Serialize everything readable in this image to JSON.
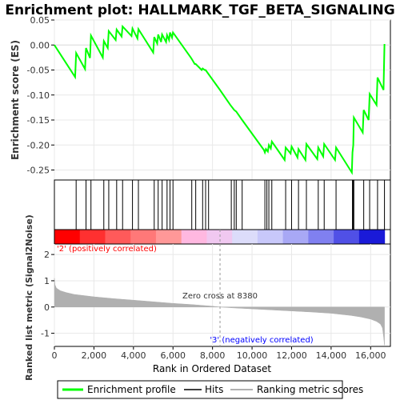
{
  "chart_data": {
    "type": "line",
    "title": "Enrichment plot: HALLMARK_TGF_BETA_SIGNALING",
    "top_panel": {
      "ylabel": "Enrichment score (ES)",
      "ylim": [
        -0.27,
        0.05
      ],
      "yticks": [
        0.05,
        0.0,
        -0.05,
        -0.1,
        -0.15,
        -0.2,
        -0.25
      ],
      "ytick_labels": [
        "0.05",
        "0.00",
        "-0.05",
        "-0.10",
        "-0.15",
        "-0.20",
        "-0.25"
      ],
      "line_color": "#00ff00",
      "series": [
        {
          "name": "Enrichment profile",
          "x": [
            0,
            1050,
            1100,
            1550,
            1600,
            1800,
            1850,
            2450,
            2500,
            2700,
            2750,
            3100,
            3150,
            3400,
            3450,
            3900,
            3950,
            4200,
            4250,
            5000,
            5050,
            5200,
            5250,
            5400,
            5450,
            5650,
            5700,
            5800,
            5850,
            5950,
            6000,
            6900,
            6950,
            7100,
            7150,
            7450,
            7500,
            7600,
            7650,
            8380,
            8900,
            9100,
            9200,
            9500,
            10600,
            10650,
            10700,
            10800,
            10850,
            10950,
            11000,
            11650,
            11700,
            11950,
            12000,
            12300,
            12350,
            12700,
            12750,
            13300,
            13350,
            13600,
            13650,
            14200,
            14250,
            15050,
            15080,
            15120,
            15150,
            15600,
            15650,
            15900,
            15950,
            16300,
            16350,
            16650,
            16700
          ],
          "values": [
            0.0,
            -0.064,
            -0.016,
            -0.048,
            -0.006,
            -0.026,
            0.019,
            -0.025,
            0.008,
            -0.006,
            0.028,
            0.01,
            0.031,
            0.017,
            0.037,
            0.018,
            0.033,
            0.013,
            0.032,
            -0.015,
            0.016,
            0.003,
            0.021,
            0.006,
            0.021,
            0.006,
            0.02,
            0.01,
            0.025,
            0.015,
            0.025,
            -0.025,
            -0.028,
            -0.038,
            -0.038,
            -0.05,
            -0.047,
            -0.05,
            -0.05,
            -0.09,
            -0.12,
            -0.13,
            -0.133,
            -0.15,
            -0.21,
            -0.215,
            -0.208,
            -0.213,
            -0.2,
            -0.207,
            -0.193,
            -0.23,
            -0.205,
            -0.217,
            -0.203,
            -0.225,
            -0.208,
            -0.23,
            -0.198,
            -0.228,
            -0.205,
            -0.223,
            -0.198,
            -0.23,
            -0.205,
            -0.255,
            -0.215,
            -0.2,
            -0.145,
            -0.175,
            -0.13,
            -0.15,
            -0.098,
            -0.12,
            -0.065,
            -0.09,
            0.002
          ]
        }
      ]
    },
    "hits_panel": {
      "legend_label": "Hits",
      "hit_positions": [
        1100,
        1600,
        1850,
        2500,
        2750,
        3150,
        3450,
        3950,
        4250,
        5050,
        5250,
        5450,
        5700,
        5850,
        6000,
        6950,
        7150,
        7500,
        7650,
        7800,
        8950,
        9100,
        9200,
        9500,
        10650,
        10750,
        10850,
        11000,
        11700,
        12000,
        12350,
        12750,
        13350,
        13650,
        14250,
        15080,
        15120,
        15150,
        15650,
        15950,
        16350,
        16700
      ],
      "color_bar": [
        "#ff0000",
        "#ff3030",
        "#ff5a5a",
        "#ff7878",
        "#ff9898",
        "#ffb8e0",
        "#f0c8f0",
        "#dcdcfa",
        "#c8c8fa",
        "#a8a8f5",
        "#8080f0",
        "#5050e6",
        "#1a1ad8"
      ],
      "positive_label": "'2' (positively correlated)",
      "negative_label": "'3' (negatively correlated)",
      "positive_color": "#ff0000",
      "negative_color": "#0000ff"
    },
    "metric_panel": {
      "ylabel": "Ranked list metric (Signal2Noise)",
      "ylim": [
        -1.5,
        2.4
      ],
      "yticks": [
        2,
        1,
        0,
        -1
      ],
      "ytick_labels": [
        "2",
        "1",
        "0",
        "-1"
      ],
      "fill_color": "#b0b0b0",
      "zero_cross_label": "Zero cross at 8380",
      "zero_cross": 8380,
      "profile_x": [
        0,
        30,
        100,
        300,
        600,
        1000,
        2000,
        3000,
        4000,
        5000,
        6000,
        7000,
        8000,
        8380,
        9000,
        10000,
        11000,
        12000,
        13000,
        14000,
        15000,
        15500,
        16000,
        16300,
        16500,
        16600,
        16650,
        16700
      ],
      "profile_y": [
        1.1,
        0.85,
        0.72,
        0.62,
        0.55,
        0.48,
        0.39,
        0.32,
        0.26,
        0.2,
        0.14,
        0.09,
        0.03,
        0.0,
        -0.03,
        -0.07,
        -0.11,
        -0.15,
        -0.19,
        -0.24,
        -0.32,
        -0.38,
        -0.46,
        -0.55,
        -0.65,
        -0.8,
        -1.1,
        -1.45
      ]
    },
    "xaxis": {
      "label": "Rank in Ordered Dataset",
      "xlim": [
        0,
        17000
      ],
      "ticks": [
        0,
        2000,
        4000,
        6000,
        8000,
        10000,
        12000,
        14000,
        16000
      ],
      "tick_labels": [
        "0",
        "2,000",
        "4,000",
        "6,000",
        "8,000",
        "10,000",
        "12,000",
        "14,000",
        "16,000"
      ]
    },
    "legend": [
      {
        "label": "Enrichment profile",
        "color": "#00ff00"
      },
      {
        "label": "Hits",
        "color": "#000000"
      },
      {
        "label": "Ranking metric scores",
        "color": "#b0b0b0"
      }
    ],
    "grid": true
  }
}
